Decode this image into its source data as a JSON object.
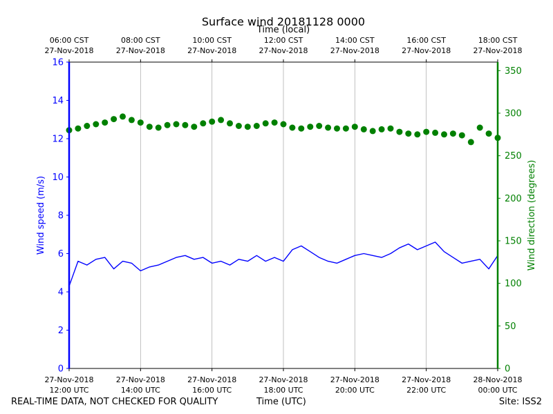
{
  "chart_data": {
    "type": "line",
    "title": "Surface wind 20181128 0000",
    "top_axis_label": "Time (local)",
    "xlabel": "Time (UTC)",
    "ylabel_left": "Wind speed (m/s)",
    "ylabel_right": "Wind direction (degrees)",
    "grid": "vertical",
    "x_range_hours_utc": [
      12,
      24
    ],
    "ylim_left": [
      0,
      16
    ],
    "ylim_right": [
      0,
      360
    ],
    "yticks_left": [
      "0",
      "2",
      "4",
      "6",
      "8",
      "10",
      "12",
      "14",
      "16"
    ],
    "yticks_right": [
      "0",
      "50",
      "100",
      "150",
      "200",
      "250",
      "300",
      "350"
    ],
    "bottom_ticks": [
      {
        "hour": 12,
        "line1": "27-Nov-2018",
        "line2": "12:00 UTC"
      },
      {
        "hour": 14,
        "line1": "27-Nov-2018",
        "line2": "14:00 UTC"
      },
      {
        "hour": 16,
        "line1": "27-Nov-2018",
        "line2": "16:00 UTC"
      },
      {
        "hour": 18,
        "line1": "27-Nov-2018",
        "line2": "18:00 UTC"
      },
      {
        "hour": 20,
        "line1": "27-Nov-2018",
        "line2": "20:00 UTC"
      },
      {
        "hour": 22,
        "line1": "27-Nov-2018",
        "line2": "22:00 UTC"
      },
      {
        "hour": 24,
        "line1": "28-Nov-2018",
        "line2": "00:00 UTC"
      }
    ],
    "top_ticks": [
      {
        "hour": 12,
        "line1": "06:00 CST",
        "line2": "27-Nov-2018"
      },
      {
        "hour": 14,
        "line1": "08:00 CST",
        "line2": "27-Nov-2018"
      },
      {
        "hour": 16,
        "line1": "10:00 CST",
        "line2": "27-Nov-2018"
      },
      {
        "hour": 18,
        "line1": "12:00 CST",
        "line2": "27-Nov-2018"
      },
      {
        "hour": 20,
        "line1": "14:00 CST",
        "line2": "27-Nov-2018"
      },
      {
        "hour": 22,
        "line1": "16:00 CST",
        "line2": "27-Nov-2018"
      },
      {
        "hour": 24,
        "line1": "18:00 CST",
        "line2": "27-Nov-2018"
      }
    ],
    "series": [
      {
        "name": "Wind speed",
        "axis": "left",
        "style": "line",
        "color": "#0000ff",
        "hours": [
          12.0,
          12.25,
          12.5,
          12.75,
          13.0,
          13.25,
          13.5,
          13.75,
          14.0,
          14.25,
          14.5,
          14.75,
          15.0,
          15.25,
          15.5,
          15.75,
          16.0,
          16.25,
          16.5,
          16.75,
          17.0,
          17.25,
          17.5,
          17.75,
          18.0,
          18.25,
          18.5,
          18.75,
          19.0,
          19.25,
          19.5,
          19.75,
          20.0,
          20.25,
          20.5,
          20.75,
          21.0,
          21.25,
          21.5,
          21.75,
          22.0,
          22.25,
          22.5,
          22.75,
          23.0,
          23.25,
          23.5,
          23.75,
          24.0
        ],
        "values": [
          4.3,
          5.6,
          5.4,
          5.7,
          5.8,
          5.2,
          5.6,
          5.5,
          5.1,
          5.3,
          5.4,
          5.6,
          5.8,
          5.9,
          5.7,
          5.8,
          5.5,
          5.6,
          5.4,
          5.7,
          5.6,
          5.9,
          5.6,
          5.8,
          5.6,
          6.2,
          6.4,
          6.1,
          5.8,
          5.6,
          5.5,
          5.7,
          5.9,
          6.0,
          5.9,
          5.8,
          6.0,
          6.3,
          6.5,
          6.2,
          6.4,
          6.6,
          6.1,
          5.8,
          5.5,
          5.6,
          5.7,
          5.2,
          5.9
        ]
      },
      {
        "name": "Wind direction",
        "axis": "right",
        "style": "markers",
        "color": "#008000",
        "hours": [
          12.0,
          12.25,
          12.5,
          12.75,
          13.0,
          13.25,
          13.5,
          13.75,
          14.0,
          14.25,
          14.5,
          14.75,
          15.0,
          15.25,
          15.5,
          15.75,
          16.0,
          16.25,
          16.5,
          16.75,
          17.0,
          17.25,
          17.5,
          17.75,
          18.0,
          18.25,
          18.5,
          18.75,
          19.0,
          19.25,
          19.5,
          19.75,
          20.0,
          20.25,
          20.5,
          20.75,
          21.0,
          21.25,
          21.5,
          21.75,
          22.0,
          22.25,
          22.5,
          22.75,
          23.0,
          23.25,
          23.5,
          23.75,
          24.0
        ],
        "values": [
          280,
          282,
          285,
          287,
          289,
          293,
          296,
          292,
          289,
          284,
          283,
          286,
          287,
          286,
          284,
          288,
          290,
          292,
          288,
          285,
          284,
          285,
          288,
          289,
          287,
          283,
          282,
          284,
          285,
          283,
          282,
          282,
          284,
          281,
          279,
          281,
          282,
          278,
          276,
          275,
          278,
          277,
          275,
          276,
          274,
          266,
          283,
          276,
          271
        ]
      }
    ]
  },
  "footer": {
    "left": "REAL-TIME DATA, NOT CHECKED FOR QUALITY",
    "center": "Time (UTC)",
    "right": "Site: ISS2"
  },
  "colors": {
    "speed": "#0000ff",
    "direction": "#008000",
    "grid": "#b0b0b0"
  }
}
